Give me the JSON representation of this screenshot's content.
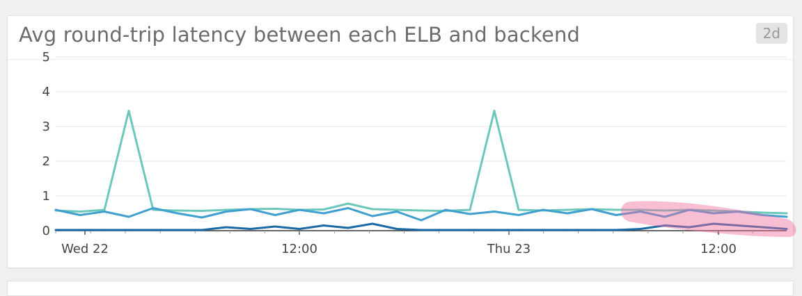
{
  "widget": {
    "title": "Avg round-trip latency between each ELB and backend",
    "range_badge": "2d"
  },
  "chart_data": {
    "type": "line",
    "title": "Avg round-trip latency between each ELB and backend",
    "xlabel": "",
    "ylabel": "",
    "ylim": [
      0,
      5
    ],
    "y_ticks": [
      "0",
      "1",
      "2",
      "3",
      "4",
      "5"
    ],
    "x_ticks": [
      "Wed 22",
      "12:00",
      "Thu 23",
      "12:00"
    ],
    "grid": true,
    "legend": "none",
    "series": [
      {
        "color": "#6cc7bb",
        "x": [
          0,
          1,
          2,
          3,
          4,
          5,
          6,
          7,
          8,
          9,
          10,
          11,
          12,
          13,
          14,
          15,
          16,
          17,
          18,
          19,
          20,
          21,
          22,
          23,
          24,
          25,
          26,
          27,
          28,
          29,
          30
        ],
        "values": [
          0.58,
          0.55,
          0.6,
          3.45,
          0.6,
          0.58,
          0.57,
          0.6,
          0.62,
          0.63,
          0.6,
          0.61,
          0.78,
          0.62,
          0.6,
          0.58,
          0.57,
          0.6,
          3.45,
          0.6,
          0.58,
          0.6,
          0.62,
          0.6,
          0.6,
          0.58,
          0.6,
          0.58,
          0.55,
          0.52,
          0.5
        ]
      },
      {
        "color": "#3f9fcf",
        "x": [
          0,
          1,
          2,
          3,
          4,
          5,
          6,
          7,
          8,
          9,
          10,
          11,
          12,
          13,
          14,
          15,
          16,
          17,
          18,
          19,
          20,
          21,
          22,
          23,
          24,
          25,
          26,
          27,
          28,
          29,
          30
        ],
        "values": [
          0.6,
          0.45,
          0.55,
          0.4,
          0.65,
          0.5,
          0.38,
          0.55,
          0.62,
          0.45,
          0.6,
          0.5,
          0.65,
          0.42,
          0.55,
          0.3,
          0.6,
          0.48,
          0.55,
          0.45,
          0.6,
          0.5,
          0.62,
          0.45,
          0.55,
          0.4,
          0.6,
          0.5,
          0.55,
          0.45,
          0.4
        ]
      },
      {
        "color": "#1a6aa5",
        "x": [
          0,
          1,
          2,
          3,
          4,
          5,
          6,
          7,
          8,
          9,
          10,
          11,
          12,
          13,
          14,
          15,
          16,
          17,
          18,
          19,
          20,
          21,
          22,
          23,
          24,
          25,
          26,
          27,
          28,
          29,
          30
        ],
        "values": [
          0.02,
          0.02,
          0.02,
          0.02,
          0.02,
          0.02,
          0.02,
          0.1,
          0.05,
          0.12,
          0.05,
          0.15,
          0.08,
          0.2,
          0.05,
          0.02,
          0.02,
          0.02,
          0.02,
          0.02,
          0.02,
          0.02,
          0.02,
          0.02,
          0.05,
          0.15,
          0.1,
          0.2,
          0.15,
          0.1,
          0.05
        ]
      }
    ]
  }
}
